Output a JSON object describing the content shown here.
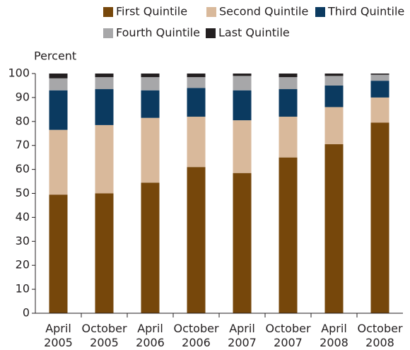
{
  "chart_data": {
    "type": "stacked_bar",
    "ylabel": "Percent",
    "categories": [
      "April 2005",
      "October 2005",
      "April 2006",
      "October 2006",
      "April 2007",
      "October 2007",
      "April 2008",
      "October 2008"
    ],
    "series": [
      {
        "name": "First Quintile",
        "color": "#76470b",
        "values": [
          49.5,
          50,
          54.5,
          61,
          58.5,
          65,
          70.5,
          79.5
        ]
      },
      {
        "name": "Second Quintile",
        "color": "#d9b99b",
        "values": [
          27,
          28.5,
          27,
          21,
          22,
          17,
          15.5,
          10.5
        ]
      },
      {
        "name": "Third Quintile",
        "color": "#0b3a60",
        "values": [
          16.5,
          15,
          11.5,
          12,
          12.5,
          11.5,
          9,
          7
        ]
      },
      {
        "name": "Fourth Quintile",
        "color": "#a7a7a9",
        "values": [
          5,
          5,
          5.5,
          4.5,
          6,
          5,
          4,
          2.5
        ]
      },
      {
        "name": "Last Quintile",
        "color": "#231f20",
        "values": [
          2,
          1.5,
          1.5,
          1.5,
          1,
          1.5,
          1,
          0.5
        ]
      }
    ],
    "ylim": [
      0,
      100
    ],
    "yticks": [
      0,
      10,
      20,
      30,
      40,
      50,
      60,
      70,
      80,
      90,
      100
    ]
  }
}
